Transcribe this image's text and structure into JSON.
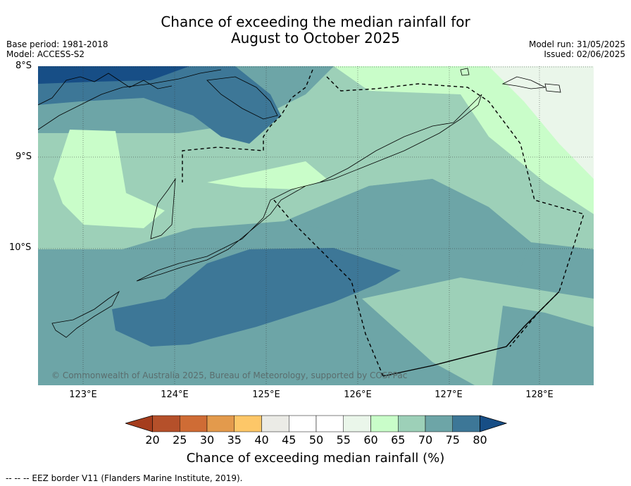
{
  "title_line1": "Chance of exceeding the median rainfall for",
  "title_line2": "August to October 2025",
  "meta": {
    "base_period": "Base period: 1981-2018",
    "model": "Model: ACCESS-S2",
    "model_run": "Model run: 31/05/2025",
    "issued": "Issued: 02/06/2025"
  },
  "latitude_labels": [
    "8°S",
    "9°S",
    "10°S"
  ],
  "longitude_labels": [
    "123°E",
    "124°E",
    "125°E",
    "126°E",
    "127°E",
    "128°E"
  ],
  "copyright": "© Commonwealth of Australia 2025, Bureau of Meteorology, supported by COSPPac",
  "colorbar": {
    "ticks": [
      "20",
      "25",
      "30",
      "35",
      "40",
      "45",
      "50",
      "55",
      "60",
      "65",
      "70",
      "75",
      "80"
    ],
    "colors": [
      "#a53d1d",
      "#b5502a",
      "#cf6c35",
      "#e39a4c",
      "#fdc768",
      "#ebebe6",
      "#ffffff",
      "#ffffff",
      "#eaf6ea",
      "#c9fdc9",
      "#9dd0b8",
      "#6da5a7",
      "#3d7797",
      "#174e86"
    ],
    "title": "Chance of exceeding median rainfall (%)"
  },
  "footnote": "--  --  -- EEZ border V11 (Flanders Marine Institute, 2019).",
  "map_colors": {
    "c55": "#eaf6ea",
    "c60": "#c9fdc9",
    "c65": "#9dd0b8",
    "c70": "#6da5a7",
    "c75": "#3d7797",
    "c80": "#174e86"
  }
}
